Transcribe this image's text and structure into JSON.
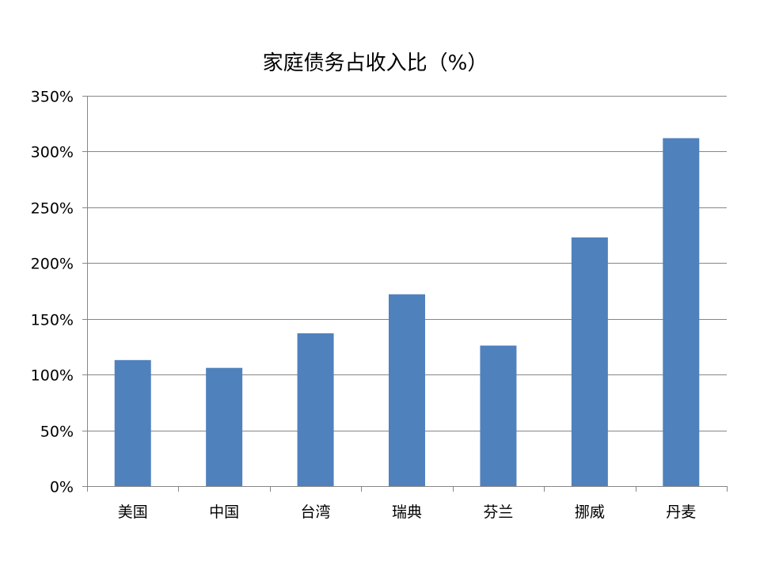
{
  "chart_data": {
    "type": "bar",
    "title": "家庭债务占收入比（%）",
    "categories": [
      "美国",
      "中国",
      "台湾",
      "瑞典",
      "芬兰",
      "挪威",
      "丹麦"
    ],
    "values": [
      113,
      106,
      137,
      172,
      126,
      223,
      312
    ],
    "ylim": [
      0,
      350
    ],
    "yticks": [
      0,
      50,
      100,
      150,
      200,
      250,
      300,
      350
    ],
    "ytick_labels": [
      "0%",
      "50%",
      "100%",
      "150%",
      "200%",
      "250%",
      "300%",
      "350%"
    ],
    "grid": true,
    "legend": "none",
    "colors": {
      "bar": "#4F81BD",
      "grid": "#868686",
      "axis": "#868686"
    }
  }
}
